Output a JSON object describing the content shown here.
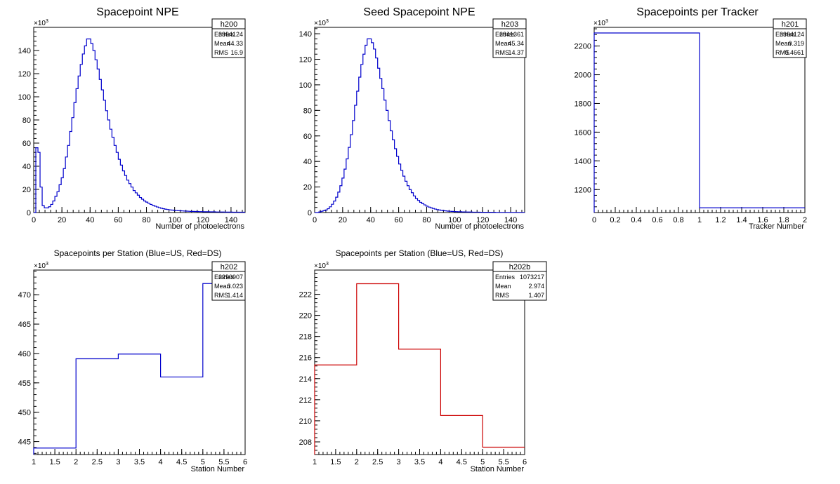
{
  "colors": {
    "blue": "#0000cc",
    "red": "#cc0000",
    "frame": "#000000",
    "background": "#ffffff"
  },
  "chart_data": [
    {
      "type": "histogram",
      "title": "Spacepoint NPE",
      "xlabel": "Number of photoelectrons",
      "ylabel": "",
      "y_exponent_label": "×10",
      "y_exponent_power": "3",
      "xlim": [
        0,
        150
      ],
      "ylim": [
        0,
        160
      ],
      "x_ticks": [
        0,
        20,
        40,
        60,
        80,
        100,
        120,
        140
      ],
      "x_tick_labels": [
        "0",
        "20",
        "40",
        "60",
        "80",
        "100",
        "120",
        "140"
      ],
      "y_ticks": [
        0,
        20,
        40,
        60,
        80,
        100,
        120,
        140
      ],
      "y_tick_labels": [
        "0",
        "20",
        "40",
        "60",
        "80",
        "100",
        "120",
        "140"
      ],
      "bin_width": 1.5,
      "line_color": "#0000cc",
      "values": [
        0,
        56,
        52,
        22,
        6,
        4,
        4,
        5,
        7,
        10,
        14,
        18,
        24,
        30,
        38,
        48,
        58,
        70,
        82,
        95,
        107,
        118,
        128,
        137,
        144,
        150,
        150,
        146,
        140,
        132,
        124,
        115,
        106,
        97,
        88,
        80,
        72,
        65,
        58,
        52,
        46,
        41,
        36,
        32,
        28,
        25,
        22,
        19,
        17,
        15,
        13,
        11.5,
        10,
        9,
        8,
        7,
        6.2,
        5.5,
        4.8,
        4.2,
        3.7,
        3.3,
        2.9,
        2.6,
        2.3,
        2.1,
        1.9,
        1.7,
        1.6,
        1.5,
        1.4,
        1.3,
        1.2,
        1.1,
        1.0,
        1.0,
        0.9,
        0.9,
        0.8,
        0.8,
        0.7,
        0.7,
        0.7,
        0.6,
        0.6,
        0.6,
        0.5,
        0.5,
        0.5,
        0.5,
        0.4,
        0.4,
        0.4,
        0.4,
        0.3,
        0.3,
        0.3,
        0.3,
        0.3,
        0.3
      ],
      "stats": {
        "name": "h200",
        "rows": [
          [
            "Entries",
            "3364124"
          ],
          [
            "Mean",
            "44.33"
          ],
          [
            "RMS",
            "16.9"
          ]
        ]
      }
    },
    {
      "type": "histogram",
      "title": "Seed Spacepoint NPE",
      "xlabel": "Number of photoelectrons",
      "ylabel": "",
      "y_exponent_label": "×10",
      "y_exponent_power": "3",
      "xlim": [
        0,
        150
      ],
      "ylim": [
        0,
        145
      ],
      "x_ticks": [
        0,
        20,
        40,
        60,
        80,
        100,
        120,
        140
      ],
      "x_tick_labels": [
        "0",
        "20",
        "40",
        "60",
        "80",
        "100",
        "120",
        "140"
      ],
      "y_ticks": [
        0,
        20,
        40,
        60,
        80,
        100,
        120,
        140
      ],
      "y_tick_labels": [
        "0",
        "20",
        "40",
        "60",
        "80",
        "100",
        "120",
        "140"
      ],
      "bin_width": 1.5,
      "line_color": "#0000cc",
      "values": [
        0,
        0,
        0.5,
        1,
        1.5,
        2,
        3,
        4.5,
        6.5,
        9,
        12,
        16,
        21,
        27,
        34,
        42,
        51,
        61,
        72,
        84,
        95,
        106,
        116,
        124,
        131,
        136,
        136,
        133,
        128,
        121,
        113,
        105,
        97,
        88,
        80,
        72,
        64,
        57,
        50,
        44,
        38,
        33,
        28.5,
        24.5,
        21,
        18,
        15.5,
        13,
        11,
        9.5,
        8,
        7,
        6,
        5,
        4.3,
        3.7,
        3.2,
        2.7,
        2.3,
        2.0,
        1.7,
        1.5,
        1.3,
        1.1,
        1.0,
        0.9,
        0.8,
        0.7,
        0.6,
        0.6,
        0.5,
        0.5,
        0.4,
        0.4,
        0.4,
        0.3,
        0.3,
        0.3,
        0.3,
        0.2,
        0.2,
        0.2,
        0.2,
        0.2,
        0.2,
        0.2,
        0.1,
        0.1,
        0.1,
        0.1,
        0.1,
        0.1,
        0.1,
        0.1,
        0.1,
        0.1,
        0.1,
        0.1,
        0.1,
        0.1
      ],
      "stats": {
        "name": "h203",
        "rows": [
          [
            "Entries",
            "2841361"
          ],
          [
            "Mean",
            "45.34"
          ],
          [
            "RMS",
            "14.37"
          ]
        ]
      }
    },
    {
      "type": "histogram",
      "title": "Spacepoints per Tracker",
      "xlabel": "Tracker Number",
      "ylabel": "",
      "y_exponent_label": "×10",
      "y_exponent_power": "3",
      "xlim": [
        0,
        2
      ],
      "ylim": [
        1040,
        2330
      ],
      "x_ticks": [
        0,
        0.2,
        0.4,
        0.6,
        0.8,
        1,
        1.2,
        1.4,
        1.6,
        1.8,
        2
      ],
      "x_tick_labels": [
        "0",
        "0.2",
        "0.4",
        "0.6",
        "0.8",
        "1",
        "1.2",
        "1.4",
        "1.6",
        "1.8",
        "2"
      ],
      "y_ticks": [
        1200,
        1400,
        1600,
        1800,
        2000,
        2200
      ],
      "y_tick_labels": [
        "1200",
        "1400",
        "1600",
        "1800",
        "2000",
        "2200"
      ],
      "bin_edges": [
        0,
        1,
        2
      ],
      "line_color": "#0000cc",
      "values": [
        2291,
        1073
      ],
      "stats": {
        "name": "h201",
        "rows": [
          [
            "Entries",
            "3364124"
          ],
          [
            "Mean",
            "0.319"
          ],
          [
            "RMS",
            "0.4661"
          ]
        ]
      }
    },
    {
      "type": "histogram",
      "title": "Spacepoints per Station (Blue=US, Red=DS)",
      "xlabel": "Station Number",
      "ylabel": "",
      "y_exponent_label": "×10",
      "y_exponent_power": "3",
      "xlim": [
        1,
        6
      ],
      "ylim": [
        442.8,
        474.2
      ],
      "x_ticks": [
        1,
        1.5,
        2,
        2.5,
        3,
        3.5,
        4,
        4.5,
        5,
        5.5,
        6
      ],
      "x_tick_labels": [
        "1",
        "1.5",
        "2",
        "2.5",
        "3",
        "3.5",
        "4",
        "4.5",
        "5",
        "5.5",
        "6"
      ],
      "y_ticks": [
        445,
        450,
        455,
        460,
        465,
        470
      ],
      "y_tick_labels": [
        "445",
        "450",
        "455",
        "460",
        "465",
        "470"
      ],
      "bin_edges": [
        1,
        2,
        3,
        4,
        5,
        6
      ],
      "line_color": "#0000cc",
      "values": [
        443.9,
        459.1,
        459.9,
        456.0,
        471.9
      ],
      "stats": {
        "name": "h202",
        "rows": [
          [
            "Entries",
            "2290907"
          ],
          [
            "Mean",
            "3.023"
          ],
          [
            "RMS",
            "1.414"
          ]
        ]
      }
    },
    {
      "type": "histogram",
      "title": "Spacepoints per Station (Blue=US, Red=DS)",
      "xlabel": "Station Number",
      "ylabel": "",
      "y_exponent_label": "×10",
      "y_exponent_power": "3",
      "xlim": [
        1,
        6
      ],
      "ylim": [
        206.8,
        224.3
      ],
      "x_ticks": [
        1,
        1.5,
        2,
        2.5,
        3,
        3.5,
        4,
        4.5,
        5,
        5.5,
        6
      ],
      "x_tick_labels": [
        "1",
        "1.5",
        "2",
        "2.5",
        "3",
        "3.5",
        "4",
        "4.5",
        "5",
        "5.5",
        "6"
      ],
      "y_ticks": [
        208,
        210,
        212,
        214,
        216,
        218,
        220,
        222
      ],
      "y_tick_labels": [
        "208",
        "210",
        "212",
        "214",
        "216",
        "218",
        "220",
        "222"
      ],
      "bin_edges": [
        1,
        2,
        3,
        4,
        5,
        6
      ],
      "line_color": "#cc0000",
      "values": [
        215.3,
        223.0,
        216.8,
        210.5,
        207.5
      ],
      "stats": {
        "name": "h202b",
        "rows": [
          [
            "Entries",
            "1073217"
          ],
          [
            "Mean",
            "2.974"
          ],
          [
            "RMS",
            "1.407"
          ]
        ]
      }
    }
  ]
}
